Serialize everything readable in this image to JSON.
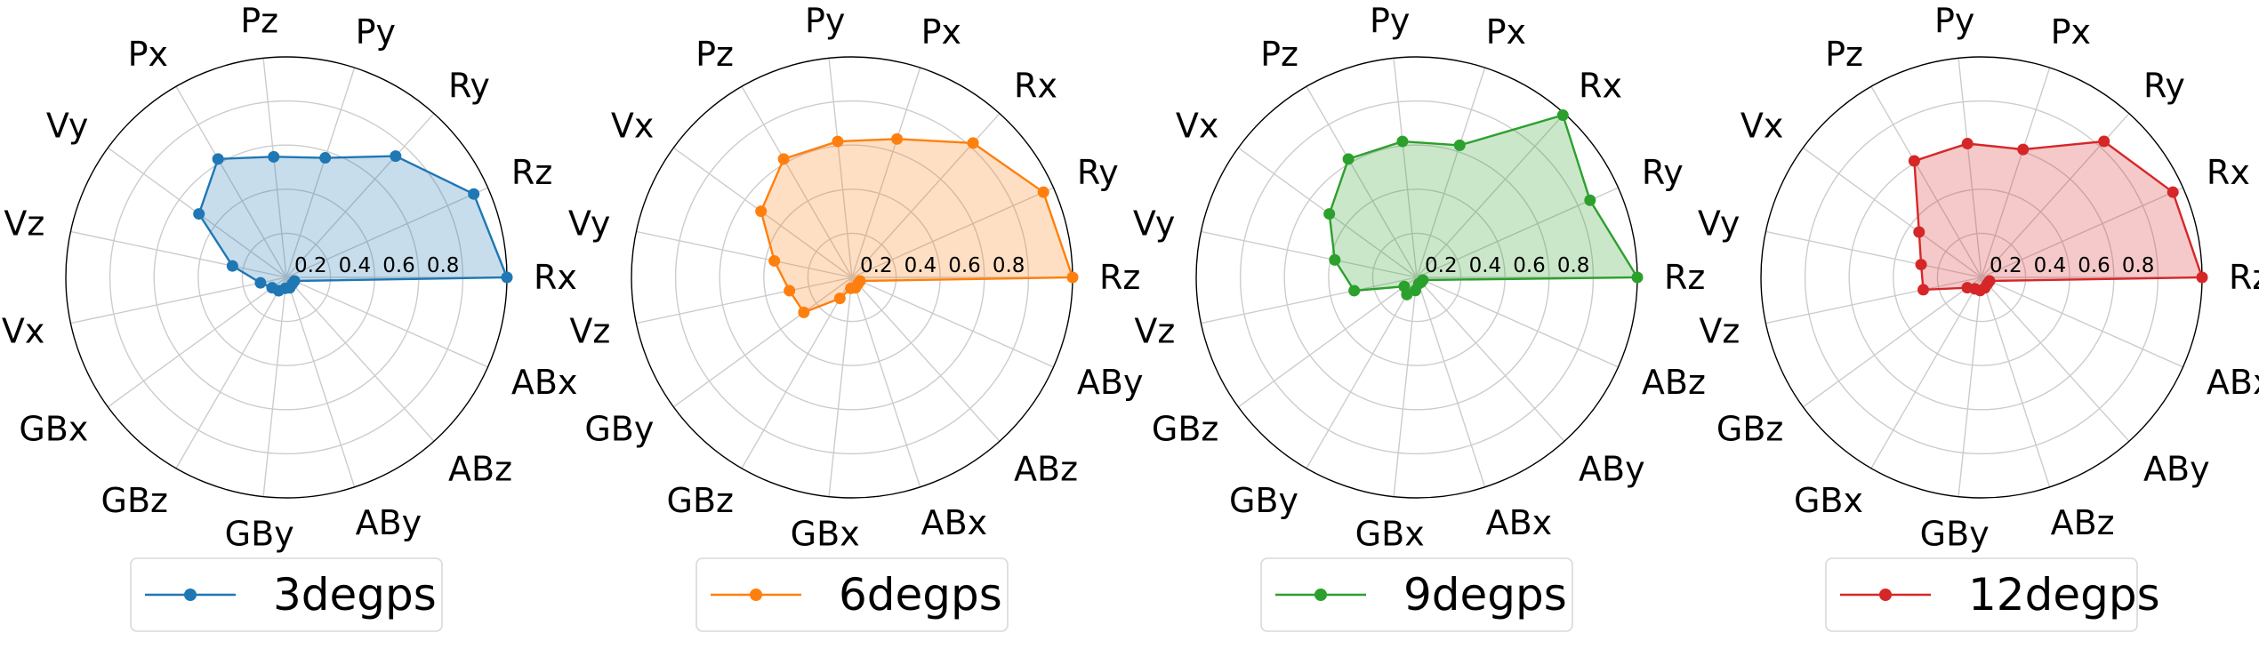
{
  "figure": {
    "panel_count": 4
  },
  "chart_data": [
    {
      "type": "radar",
      "color": "#1f77b4",
      "legend": "3degps",
      "legend_position": "bottom-center",
      "rlim": [
        0,
        1
      ],
      "r_ticks": [
        "0.2",
        "0.4",
        "0.6",
        "0.8"
      ],
      "grid": true,
      "axes": [
        {
          "label": "Rx",
          "value": 1.0
        },
        {
          "label": "Rz",
          "value": 0.93
        },
        {
          "label": "Ry",
          "value": 0.74
        },
        {
          "label": "Py",
          "value": 0.57
        },
        {
          "label": "Pz",
          "value": 0.55
        },
        {
          "label": "Px",
          "value": 0.62
        },
        {
          "label": "Vy",
          "value": 0.49
        },
        {
          "label": "Vz",
          "value": 0.25
        },
        {
          "label": "Vx",
          "value": 0.12
        },
        {
          "label": "GBx",
          "value": 0.08
        },
        {
          "label": "GBz",
          "value": 0.07
        },
        {
          "label": "GBy",
          "value": 0.05
        },
        {
          "label": "ABy",
          "value": 0.05
        },
        {
          "label": "ABz",
          "value": 0.04
        },
        {
          "label": "ABx",
          "value": 0.04
        }
      ]
    },
    {
      "type": "radar",
      "color": "#ff7f0e",
      "legend": "6degps",
      "legend_position": "bottom-center",
      "rlim": [
        0,
        1
      ],
      "r_ticks": [
        "0.2",
        "0.4",
        "0.6",
        "0.8"
      ],
      "grid": true,
      "axes": [
        {
          "label": "Rz",
          "value": 1.0
        },
        {
          "label": "Ry",
          "value": 0.95
        },
        {
          "label": "Rx",
          "value": 0.82
        },
        {
          "label": "Px",
          "value": 0.66
        },
        {
          "label": "Py",
          "value": 0.62
        },
        {
          "label": "Pz",
          "value": 0.62
        },
        {
          "label": "Vx",
          "value": 0.51
        },
        {
          "label": "Vy",
          "value": 0.36
        },
        {
          "label": "Vz",
          "value": 0.29
        },
        {
          "label": "GBy",
          "value": 0.27
        },
        {
          "label": "GBz",
          "value": 0.11
        },
        {
          "label": "GBx",
          "value": 0.05
        },
        {
          "label": "ABx",
          "value": 0.05
        },
        {
          "label": "ABz",
          "value": 0.04
        },
        {
          "label": "ABy",
          "value": 0.04
        }
      ]
    },
    {
      "type": "radar",
      "color": "#2ca02c",
      "legend": "9degps",
      "legend_position": "bottom-center",
      "rlim": [
        0,
        1
      ],
      "r_ticks": [
        "0.2",
        "0.4",
        "0.6",
        "0.8"
      ],
      "grid": true,
      "axes": [
        {
          "label": "Rz",
          "value": 1.0
        },
        {
          "label": "Ry",
          "value": 0.86
        },
        {
          "label": "Rx",
          "value": 0.99
        },
        {
          "label": "Px",
          "value": 0.63
        },
        {
          "label": "Py",
          "value": 0.62
        },
        {
          "label": "Pz",
          "value": 0.62
        },
        {
          "label": "Vx",
          "value": 0.49
        },
        {
          "label": "Vy",
          "value": 0.38
        },
        {
          "label": "Vz",
          "value": 0.29
        },
        {
          "label": "GBz",
          "value": 0.07
        },
        {
          "label": "GBy",
          "value": 0.09
        },
        {
          "label": "GBx",
          "value": 0.06
        },
        {
          "label": "ABx",
          "value": 0.03
        },
        {
          "label": "ABy",
          "value": 0.03
        },
        {
          "label": "ABz",
          "value": 0.03
        }
      ]
    },
    {
      "type": "radar",
      "color": "#d62728",
      "legend": "12degps",
      "legend_position": "bottom-center",
      "rlim": [
        0,
        1
      ],
      "r_ticks": [
        "0.2",
        "0.4",
        "0.6",
        "0.8"
      ],
      "grid": true,
      "axes": [
        {
          "label": "Rz",
          "value": 1.0
        },
        {
          "label": "Rx",
          "value": 0.95
        },
        {
          "label": "Ry",
          "value": 0.83
        },
        {
          "label": "Px",
          "value": 0.61
        },
        {
          "label": "Py",
          "value": 0.61
        },
        {
          "label": "Pz",
          "value": 0.61
        },
        {
          "label": "Vx",
          "value": 0.35
        },
        {
          "label": "Vy",
          "value": 0.28
        },
        {
          "label": "Vz",
          "value": 0.27
        },
        {
          "label": "GBz",
          "value": 0.08
        },
        {
          "label": "GBx",
          "value": 0.06
        },
        {
          "label": "GBy",
          "value": 0.06
        },
        {
          "label": "ABz",
          "value": 0.05
        },
        {
          "label": "ABy",
          "value": 0.04
        },
        {
          "label": "ABx",
          "value": 0.04
        }
      ]
    }
  ]
}
